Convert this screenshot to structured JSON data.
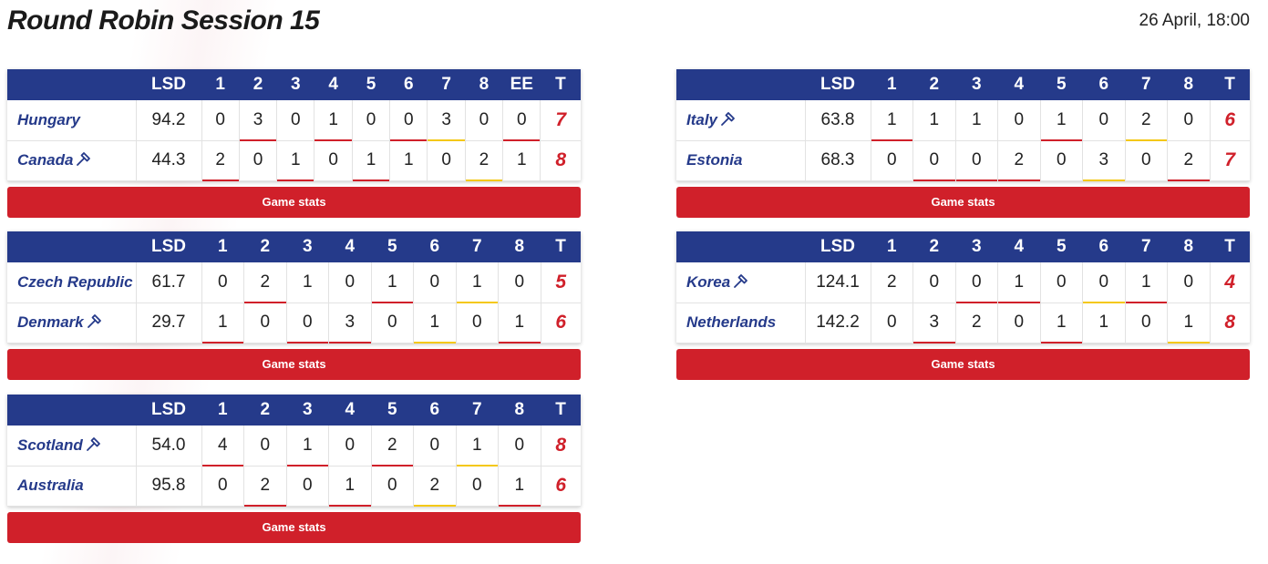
{
  "page": {
    "title": "Round Robin Session 15",
    "datetime": "26 April, 18:00",
    "lsd_label": "LSD",
    "total_label": "T",
    "button_label": "Game stats"
  },
  "colors": {
    "header": "#253a8a",
    "button": "#d0202a",
    "hammer_end": "#d0202a",
    "steal_end": "#f4c814"
  },
  "games": [
    {
      "columns": [
        "1",
        "2",
        "3",
        "4",
        "5",
        "6",
        "7",
        "8",
        "EE"
      ],
      "teams": [
        {
          "name": "Hungary",
          "hammer": false,
          "lsd": "94.2",
          "ends": [
            "0",
            "3",
            "0",
            "1",
            "0",
            "0",
            "3",
            "0",
            "0"
          ],
          "total": "7"
        },
        {
          "name": "Canada",
          "hammer": true,
          "lsd": "44.3",
          "ends": [
            "2",
            "0",
            "1",
            "0",
            "1",
            "1",
            "0",
            "2",
            "1"
          ],
          "total": "8"
        }
      ],
      "end_marks": [
        [
          null,
          "red",
          null,
          "red",
          null,
          "red",
          "yellow",
          null,
          "red"
        ],
        [
          "red",
          null,
          "red",
          null,
          "red",
          null,
          null,
          "yellow",
          null
        ]
      ]
    },
    {
      "columns": [
        "1",
        "2",
        "3",
        "4",
        "5",
        "6",
        "7",
        "8"
      ],
      "teams": [
        {
          "name": "Italy",
          "hammer": true,
          "lsd": "63.8",
          "ends": [
            "1",
            "1",
            "1",
            "0",
            "1",
            "0",
            "2",
            "0"
          ],
          "total": "6"
        },
        {
          "name": "Estonia",
          "hammer": false,
          "lsd": "68.3",
          "ends": [
            "0",
            "0",
            "0",
            "2",
            "0",
            "3",
            "0",
            "2"
          ],
          "total": "7"
        }
      ],
      "end_marks": [
        [
          "red",
          null,
          null,
          null,
          "red",
          null,
          "yellow",
          null
        ],
        [
          null,
          "red",
          "red",
          "red",
          null,
          "yellow",
          null,
          "red"
        ]
      ]
    },
    {
      "columns": [
        "1",
        "2",
        "3",
        "4",
        "5",
        "6",
        "7",
        "8"
      ],
      "teams": [
        {
          "name": "Czech Republic",
          "hammer": false,
          "lsd": "61.7",
          "ends": [
            "0",
            "2",
            "1",
            "0",
            "1",
            "0",
            "1",
            "0"
          ],
          "total": "5"
        },
        {
          "name": "Denmark",
          "hammer": true,
          "lsd": "29.7",
          "ends": [
            "1",
            "0",
            "0",
            "3",
            "0",
            "1",
            "0",
            "1"
          ],
          "total": "6"
        }
      ],
      "end_marks": [
        [
          null,
          "red",
          null,
          null,
          "red",
          null,
          "yellow",
          null
        ],
        [
          "red",
          null,
          "red",
          "red",
          null,
          "yellow",
          null,
          "red"
        ]
      ]
    },
    {
      "columns": [
        "1",
        "2",
        "3",
        "4",
        "5",
        "6",
        "7",
        "8"
      ],
      "teams": [
        {
          "name": "Korea",
          "hammer": true,
          "lsd": "124.1",
          "ends": [
            "2",
            "0",
            "0",
            "1",
            "0",
            "0",
            "1",
            "0"
          ],
          "total": "4"
        },
        {
          "name": "Netherlands",
          "hammer": false,
          "lsd": "142.2",
          "ends": [
            "0",
            "3",
            "2",
            "0",
            "1",
            "1",
            "0",
            "1"
          ],
          "total": "8"
        }
      ],
      "end_marks": [
        [
          null,
          null,
          "red",
          "red",
          null,
          "yellow",
          "red",
          null
        ],
        [
          null,
          "red",
          null,
          null,
          "red",
          null,
          null,
          "yellow"
        ]
      ]
    },
    {
      "columns": [
        "1",
        "2",
        "3",
        "4",
        "5",
        "6",
        "7",
        "8"
      ],
      "teams": [
        {
          "name": "Scotland",
          "hammer": true,
          "lsd": "54.0",
          "ends": [
            "4",
            "0",
            "1",
            "0",
            "2",
            "0",
            "1",
            "0"
          ],
          "total": "8"
        },
        {
          "name": "Australia",
          "hammer": false,
          "lsd": "95.8",
          "ends": [
            "0",
            "2",
            "0",
            "1",
            "0",
            "2",
            "0",
            "1"
          ],
          "total": "6"
        }
      ],
      "end_marks": [
        [
          "red",
          null,
          "red",
          null,
          "red",
          null,
          "yellow",
          null
        ],
        [
          null,
          "red",
          null,
          "red",
          null,
          "yellow",
          null,
          "red"
        ]
      ]
    }
  ]
}
